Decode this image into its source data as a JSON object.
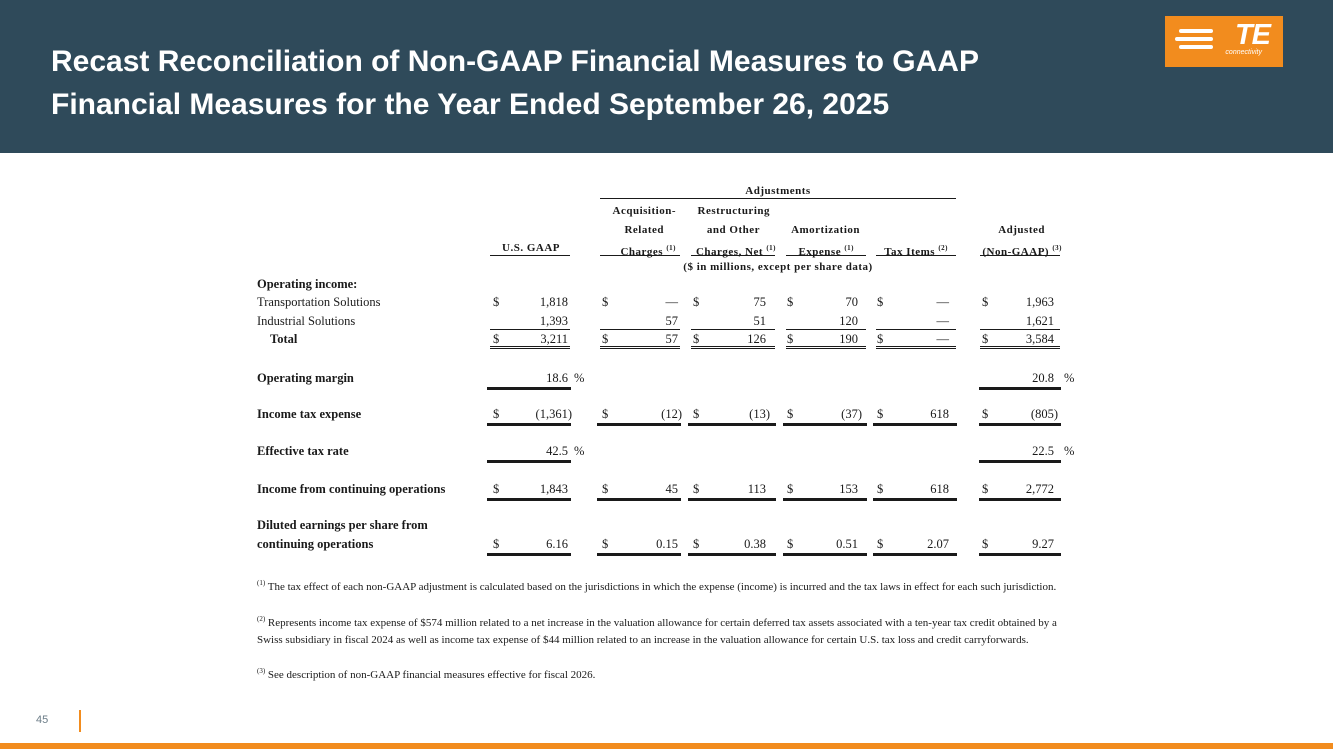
{
  "slide": {
    "title_line1": "Recast Reconciliation of Non-GAAP Financial Measures to GAAP",
    "title_line2": "Financial Measures for the Year Ended September 26, 2025",
    "logo_text": "TE",
    "logo_subtext": "connectivity",
    "page_number": "45",
    "brand_color": "#f28c1e",
    "header_color": "#2f4a5a"
  },
  "table": {
    "adjustments_label": "Adjustments",
    "units_note": "($ in millions, except per share data)",
    "columns": {
      "gaap": "U.S. GAAP",
      "acq_l1": "Acquisition-",
      "acq_l2": "Related",
      "acq_l3": "Charges",
      "acq_sup": "(1)",
      "restr_l1": "Restructuring",
      "restr_l2": "and Other",
      "restr_l3": "Charges, Net",
      "restr_sup": "(1)",
      "amort_l1": "Amortization",
      "amort_l2": "Expense",
      "amort_sup": "(1)",
      "tax": "Tax Items",
      "tax_sup": "(2)",
      "adj_l1": "Adjusted",
      "adj_l2": "(Non-GAAP)",
      "adj_sup": "(3)"
    },
    "section_operating_income": "Operating income:",
    "rows": {
      "transportation": {
        "label": "Transportation Solutions",
        "gaap": "1,818",
        "acq": "—",
        "restr": "75",
        "amort": "70",
        "tax": "—",
        "adj": "1,963"
      },
      "industrial": {
        "label": "Industrial Solutions",
        "gaap": "1,393",
        "acq": "57",
        "restr": "51",
        "amort": "120",
        "tax": "—",
        "adj": "1,621"
      },
      "total": {
        "label": "Total",
        "gaap": "3,211",
        "acq": "57",
        "restr": "126",
        "amort": "190",
        "tax": "—",
        "adj": "3,584"
      },
      "op_margin": {
        "label": "Operating margin",
        "gaap": "18.6",
        "adj": "20.8"
      },
      "tax_expense": {
        "label": "Income tax expense",
        "gaap": "(1,361)",
        "acq": "(12)",
        "restr": "(13)",
        "amort": "(37)",
        "tax": "618",
        "adj": "(805)"
      },
      "eff_tax": {
        "label": "Effective tax rate",
        "gaap": "42.5",
        "adj": "22.5"
      },
      "income_cont": {
        "label": "Income from continuing operations",
        "gaap": "1,843",
        "acq": "45",
        "restr": "113",
        "amort": "153",
        "tax": "618",
        "adj": "2,772"
      },
      "eps": {
        "label_l1": "Diluted earnings per share from",
        "label_l2": "continuing operations",
        "gaap": "6.16",
        "acq": "0.15",
        "restr": "0.38",
        "amort": "0.51",
        "tax": "2.07",
        "adj": "9.27"
      }
    },
    "dollar": "$",
    "percent": "%"
  },
  "footnotes": {
    "fn1_sup": "(1)",
    "fn1": "The tax effect of each non-GAAP adjustment is calculated based on the jurisdictions in which the expense (income) is incurred and the tax laws in effect for each such jurisdiction.",
    "fn2_sup": "(2)",
    "fn2": "Represents income tax expense of $574 million related to a net increase in the valuation allowance for certain deferred tax assets associated with a ten-year tax credit obtained by a Swiss subsidiary in fiscal 2024 as well as income tax expense of $44 million related to an increase in the valuation allowance for certain U.S. tax loss and credit carryforwards.",
    "fn3_sup": "(3)",
    "fn3": "See description of non-GAAP financial measures effective for fiscal 2026."
  }
}
